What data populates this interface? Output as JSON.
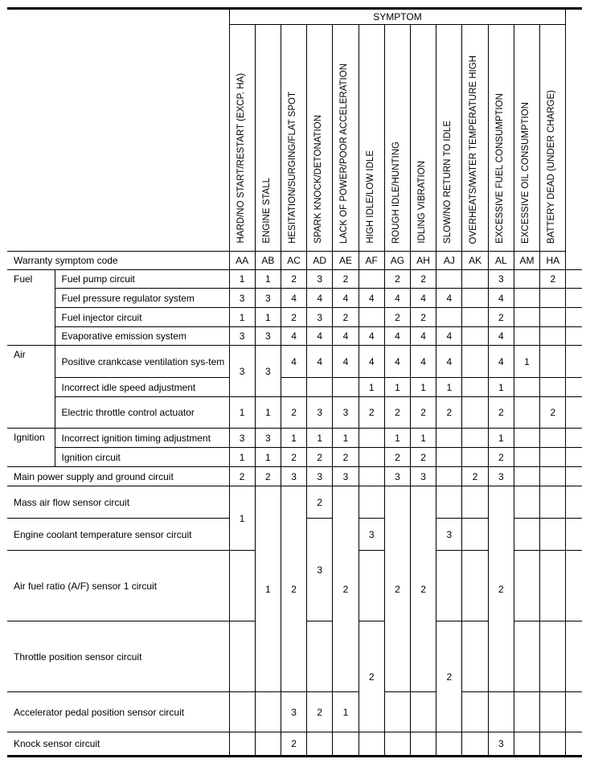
{
  "header": {
    "symptom_label": "SYMPTOM",
    "warranty_label": "Warranty symptom code"
  },
  "columns": [
    {
      "code": "AA",
      "label": "HARD/NO START/RESTART (EXCP. HA)"
    },
    {
      "code": "AB",
      "label": "ENGINE STALL"
    },
    {
      "code": "AC",
      "label": "HESITATION/SURGING/FLAT SPOT"
    },
    {
      "code": "AD",
      "label": "SPARK KNOCK/DETONATION"
    },
    {
      "code": "AE",
      "label": "LACK OF POWER/POOR ACCELERATION"
    },
    {
      "code": "AF",
      "label": "HIGH IDLE/LOW IDLE"
    },
    {
      "code": "AG",
      "label": "ROUGH IDLE/HUNTING"
    },
    {
      "code": "AH",
      "label": "IDLING VIBRATION"
    },
    {
      "code": "AJ",
      "label": "SLOW/NO RETURN TO IDLE"
    },
    {
      "code": "AK",
      "label": "OVERHEATS/WATER TEMPERATURE HIGH"
    },
    {
      "code": "AL",
      "label": "EXCESSIVE FUEL CONSUMPTION"
    },
    {
      "code": "AM",
      "label": "EXCESSIVE OIL CONSUMPTION"
    },
    {
      "code": "HA",
      "label": "BATTERY DEAD (UNDER CHARGE)"
    }
  ],
  "rows": [
    {
      "category": {
        "v": "Fuel",
        "rows": 4
      },
      "item": "Fuel pump circuit",
      "cells": [
        "1",
        "1",
        "2",
        "3",
        "2",
        "",
        "2",
        "2",
        "",
        "",
        "3",
        "",
        "2"
      ]
    },
    {
      "item": "Fuel pressure regulator system",
      "cells": [
        "3",
        "3",
        "4",
        "4",
        "4",
        "4",
        "4",
        "4",
        "4",
        "",
        "4",
        "",
        ""
      ]
    },
    {
      "item": "Fuel injector circuit",
      "cells": [
        "1",
        "1",
        "2",
        "3",
        "2",
        "",
        "2",
        "2",
        "",
        "",
        "2",
        "",
        ""
      ]
    },
    {
      "item": "Evaporative emission system",
      "cells": [
        "3",
        "3",
        "4",
        "4",
        "4",
        "4",
        "4",
        "4",
        "4",
        "",
        "4",
        "",
        ""
      ]
    },
    {
      "category": {
        "v": "Air",
        "rows": 3
      },
      "item": "Positive crankcase ventilation sys-tem",
      "cells": [
        {
          "v": "3",
          "rows": 2
        },
        {
          "v": "3",
          "rows": 2
        },
        "4",
        "4",
        "4",
        "4",
        "4",
        "4",
        "4",
        "",
        "4",
        "1",
        ""
      ]
    },
    {
      "item": "Incorrect idle speed adjustment",
      "cells": [
        null,
        null,
        "",
        "",
        "",
        "1",
        "1",
        "1",
        "1",
        "",
        "1",
        "",
        ""
      ]
    },
    {
      "item": "Electric throttle control actuator",
      "cells": [
        "1",
        "1",
        "2",
        "3",
        "3",
        "2",
        "2",
        "2",
        "2",
        "",
        "2",
        "",
        "2"
      ]
    },
    {
      "category": {
        "v": "Ignition",
        "rows": 2
      },
      "item": "Incorrect ignition timing adjustment",
      "cells": [
        "3",
        "3",
        "1",
        "1",
        "1",
        "",
        "1",
        "1",
        "",
        "",
        "1",
        "",
        ""
      ]
    },
    {
      "item": "Ignition circuit",
      "cells": [
        "1",
        "1",
        "2",
        "2",
        "2",
        "",
        "2",
        "2",
        "",
        "",
        "2",
        "",
        ""
      ]
    },
    {
      "item": "Main power supply and ground circuit",
      "full": true,
      "cells": [
        "2",
        "2",
        "3",
        "3",
        "3",
        "",
        "3",
        "3",
        "",
        "2",
        "3",
        "",
        ""
      ]
    },
    {
      "item": "Mass air flow sensor circuit",
      "full": true,
      "cells": [
        {
          "v": "1",
          "rows": 2
        },
        {
          "v": "1",
          "rows": 4
        },
        {
          "v": "2",
          "rows": 4
        },
        "2",
        {
          "v": "2",
          "rows": 4
        },
        "",
        {
          "v": "2",
          "rows": 4
        },
        {
          "v": "2",
          "rows": 4
        },
        "",
        "",
        {
          "v": "2",
          "rows": 4
        },
        "",
        ""
      ]
    },
    {
      "item": "Engine coolant temperature sensor circuit",
      "full": true,
      "cells": [
        null,
        null,
        null,
        {
          "v": "3",
          "rows": 2
        },
        null,
        "3",
        null,
        null,
        "3",
        "",
        null,
        "",
        ""
      ]
    },
    {
      "item": "Air fuel ratio (A/F) sensor 1 circuit",
      "full": true,
      "cells": [
        "",
        null,
        null,
        null,
        null,
        "",
        null,
        null,
        "",
        "",
        null,
        "",
        ""
      ]
    },
    {
      "item": "Throttle position sensor circuit",
      "full": true,
      "cells": [
        "",
        null,
        null,
        "",
        null,
        {
          "v": "2",
          "rows": 2
        },
        null,
        null,
        {
          "v": "2",
          "rows": 2
        },
        "",
        null,
        "",
        ""
      ]
    },
    {
      "item": "Accelerator pedal position sensor circuit",
      "full": true,
      "cells": [
        "",
        "",
        "3",
        "2",
        "1",
        null,
        "",
        "",
        null,
        "",
        "",
        "",
        ""
      ]
    },
    {
      "item": "Knock sensor circuit",
      "full": true,
      "cells": [
        "",
        "",
        "2",
        "",
        "",
        "",
        "",
        "",
        "",
        "",
        "3",
        "",
        ""
      ]
    }
  ]
}
